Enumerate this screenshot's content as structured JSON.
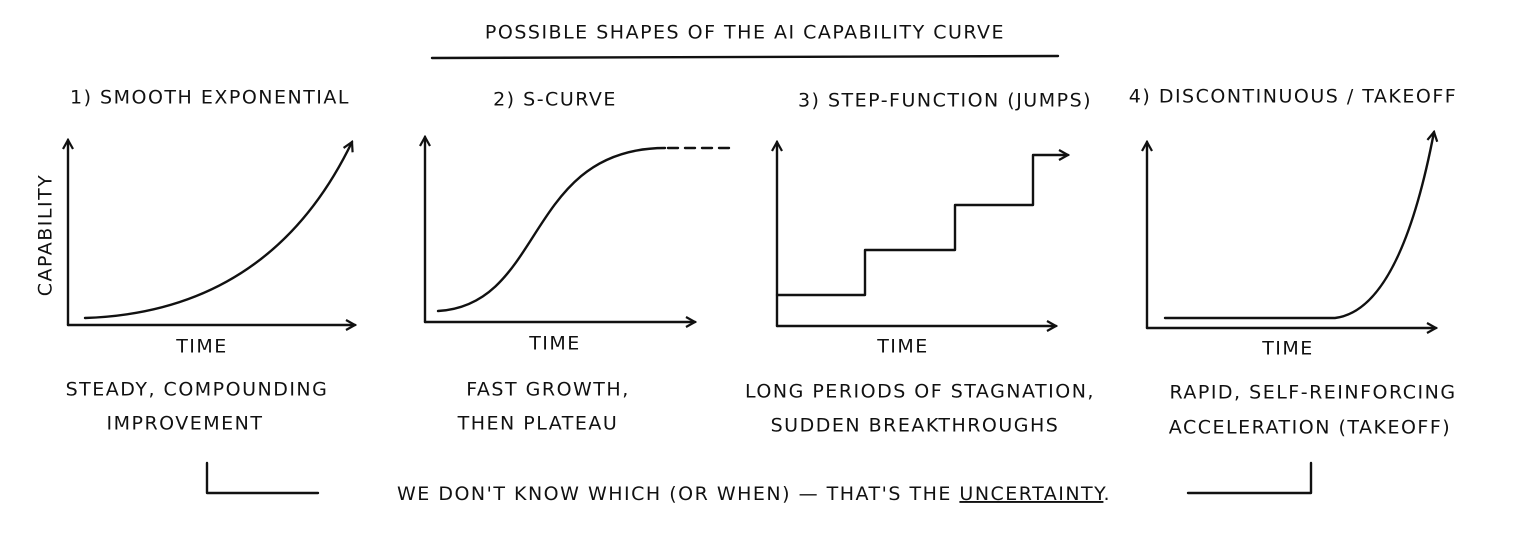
{
  "title": "POSSIBLE SHAPES OF THE AI CAPABILITY CURVE",
  "panels": [
    {
      "title": "1) SMOOTH EXPONENTIAL",
      "y_label": "CAPABILITY",
      "x_label": "TIME",
      "caption": [
        "STEADY, COMPOUNDING",
        "IMPROVEMENT"
      ]
    },
    {
      "title": "2) S-CURVE",
      "x_label": "TIME",
      "caption": [
        "FAST GROWTH,",
        "THEN PLATEAU"
      ]
    },
    {
      "title": "3) STEP-FUNCTION (JUMPS)",
      "x_label": "TIME",
      "caption": [
        "LONG PERIODS OF STAGNATION,",
        "SUDDEN BREAKTHROUGHS"
      ]
    },
    {
      "title": "4) DISCONTINUOUS / TAKEOFF",
      "x_label": "TIME",
      "caption": [
        "RAPID, SELF-REINFORCING",
        "ACCELERATION (TAKEOFF)"
      ]
    }
  ],
  "footer": {
    "text": "WE DON'T KNOW WHICH (OR WHEN) — THAT'S THE",
    "emphasis": "UNCERTAINTY",
    "end": "."
  }
}
